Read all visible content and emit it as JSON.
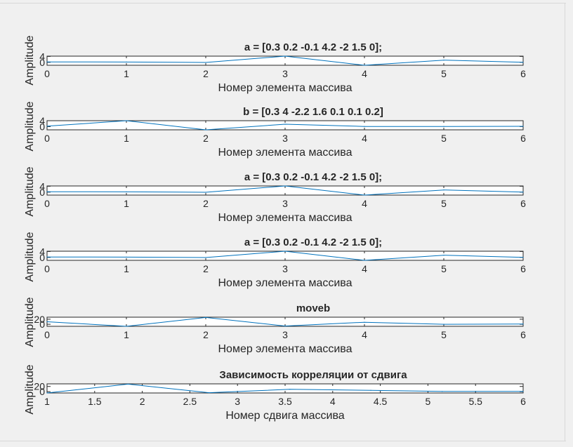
{
  "figure": {
    "background": "#f0f0f0",
    "line_color": "#0072bd"
  },
  "chart_data": [
    {
      "type": "line",
      "title": "a = [0.3 0.2 -0.1 4.2 -2 1.5 0];",
      "xlabel": "Номер элемента массива",
      "ylabel": "Amplitude",
      "x": [
        0,
        1,
        2,
        3,
        4,
        5,
        6
      ],
      "values": [
        0.3,
        0.2,
        -0.1,
        4.2,
        -2,
        1.5,
        0
      ],
      "xlim": [
        0,
        6
      ],
      "ylim": [
        -2,
        4.2
      ],
      "xticks": [
        "0",
        "1",
        "2",
        "3",
        "4",
        "5",
        "6"
      ],
      "yticks": [
        {
          "v": 0,
          "label": "0"
        },
        {
          "v": 4,
          "label": "4"
        }
      ]
    },
    {
      "type": "line",
      "title": "b = [0.3 4 -2.2 1.6 0.1 0.1 0.2]",
      "xlabel": "Номер элемента массива",
      "ylabel": "Amplitude",
      "x": [
        0,
        1,
        2,
        3,
        4,
        5,
        6
      ],
      "values": [
        0.3,
        4,
        -2.2,
        1.6,
        0.1,
        0.1,
        0.2
      ],
      "xlim": [
        0,
        6
      ],
      "ylim": [
        -2.2,
        4
      ],
      "xticks": [
        "0",
        "1",
        "2",
        "3",
        "4",
        "5",
        "6"
      ],
      "yticks": [
        {
          "v": 0,
          "label": "0"
        },
        {
          "v": 4,
          "label": "4"
        }
      ]
    },
    {
      "type": "line",
      "title": "a = [0.3 0.2 -0.1 4.2 -2 1.5 0];",
      "xlabel": "Номер элемента массива",
      "ylabel": "Amplitude",
      "x": [
        0,
        1,
        2,
        3,
        4,
        5,
        6
      ],
      "values": [
        0.3,
        0.2,
        -0.1,
        4.2,
        -2,
        1.5,
        0
      ],
      "xlim": [
        0,
        6
      ],
      "ylim": [
        -2,
        4.2
      ],
      "xticks": [
        "0",
        "1",
        "2",
        "3",
        "4",
        "5",
        "6"
      ],
      "yticks": [
        {
          "v": 0,
          "label": "0"
        },
        {
          "v": 4,
          "label": "4"
        }
      ]
    },
    {
      "type": "line",
      "title": "a = [0.3 0.2 -0.1 4.2 -2 1.5 0];",
      "xlabel": "Номер элемента массива",
      "ylabel": "Amplitude",
      "x": [
        0,
        1,
        2,
        3,
        4,
        5,
        6
      ],
      "values": [
        0.3,
        0.2,
        -0.1,
        4.2,
        -2,
        1.5,
        0
      ],
      "xlim": [
        0,
        6
      ],
      "ylim": [
        -2,
        4.2
      ],
      "xticks": [
        "0",
        "1",
        "2",
        "3",
        "4",
        "5",
        "6"
      ],
      "yticks": [
        {
          "v": 0,
          "label": "0"
        },
        {
          "v": 4,
          "label": "4"
        }
      ]
    },
    {
      "type": "line",
      "title": "moveb",
      "xlabel": "Номер элемента массива",
      "ylabel": "Amplitude",
      "x": [
        0,
        1,
        2,
        3,
        4,
        5,
        6
      ],
      "values": [
        10,
        -8,
        27,
        -7,
        8,
        0,
        1
      ],
      "xlim": [
        0,
        6
      ],
      "ylim": [
        -8,
        28
      ],
      "xticks": [
        "0",
        "1",
        "2",
        "3",
        "4",
        "5",
        "6"
      ],
      "yticks": [
        {
          "v": 0,
          "label": "0"
        },
        {
          "v": 20,
          "label": "20"
        }
      ]
    },
    {
      "type": "line",
      "title": "Зависимость корреляции от сдвига",
      "xlabel": "Номер сдвига массива",
      "ylabel": "Amplitude",
      "x": [
        1,
        1.85,
        2.7,
        3.55,
        4.4,
        5.15,
        6
      ],
      "values": [
        -5,
        29,
        -4,
        9,
        5,
        1,
        1
      ],
      "xlim": [
        1,
        6
      ],
      "ylim": [
        -5,
        30
      ],
      "xticks": [
        "1",
        "1.5",
        "2",
        "2.5",
        "3",
        "3.5",
        "4",
        "4.5",
        "5",
        "5.5",
        "6"
      ],
      "yticks": [
        {
          "v": 0,
          "label": "0"
        },
        {
          "v": 20,
          "label": "20"
        }
      ]
    }
  ]
}
